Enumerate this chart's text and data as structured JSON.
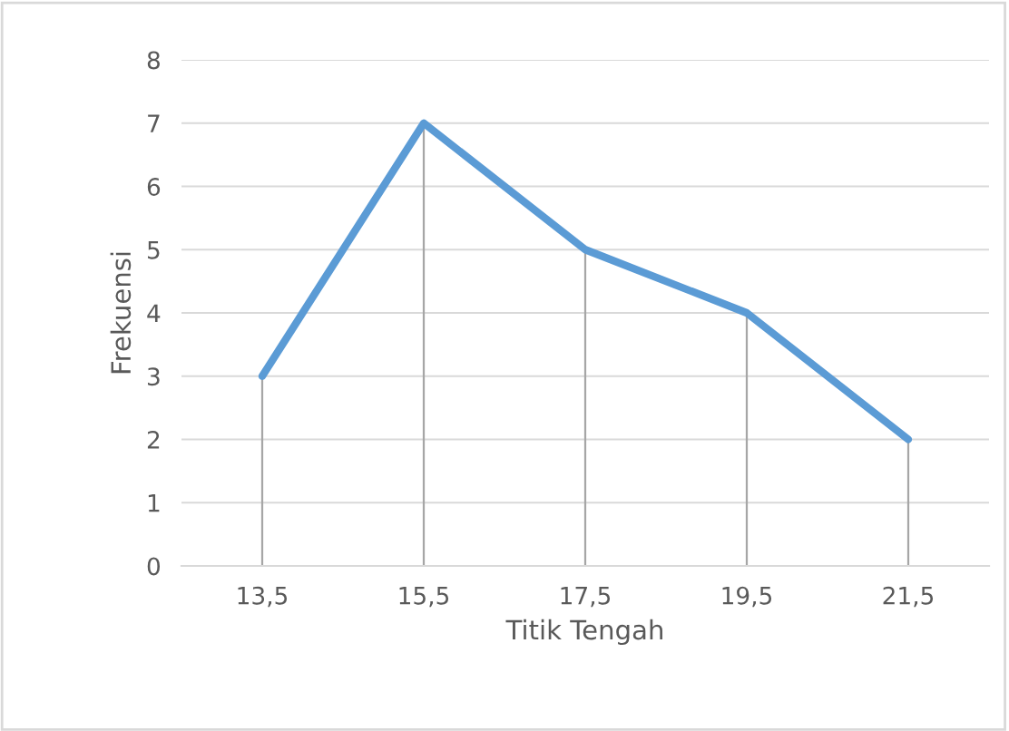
{
  "chart_data": {
    "type": "line",
    "xlabel": "Titik Tengah",
    "ylabel": "Frekuensi",
    "categories": [
      "13,5",
      "15,5",
      "17,5",
      "19,5",
      "21,5"
    ],
    "series": [
      {
        "color": "#5b9bd5",
        "values": [
          3,
          7,
          5,
          4,
          2
        ],
        "errors": [
          [
            0,
            3
          ],
          [
            0,
            7
          ],
          [
            0,
            5
          ],
          [
            0,
            4
          ],
          [
            0,
            2
          ]
        ]
      }
    ],
    "ylim": [
      0,
      8
    ],
    "yticks": [
      0,
      1,
      2,
      3,
      4,
      5,
      6,
      7,
      8
    ],
    "grid": "y",
    "legend": false
  }
}
